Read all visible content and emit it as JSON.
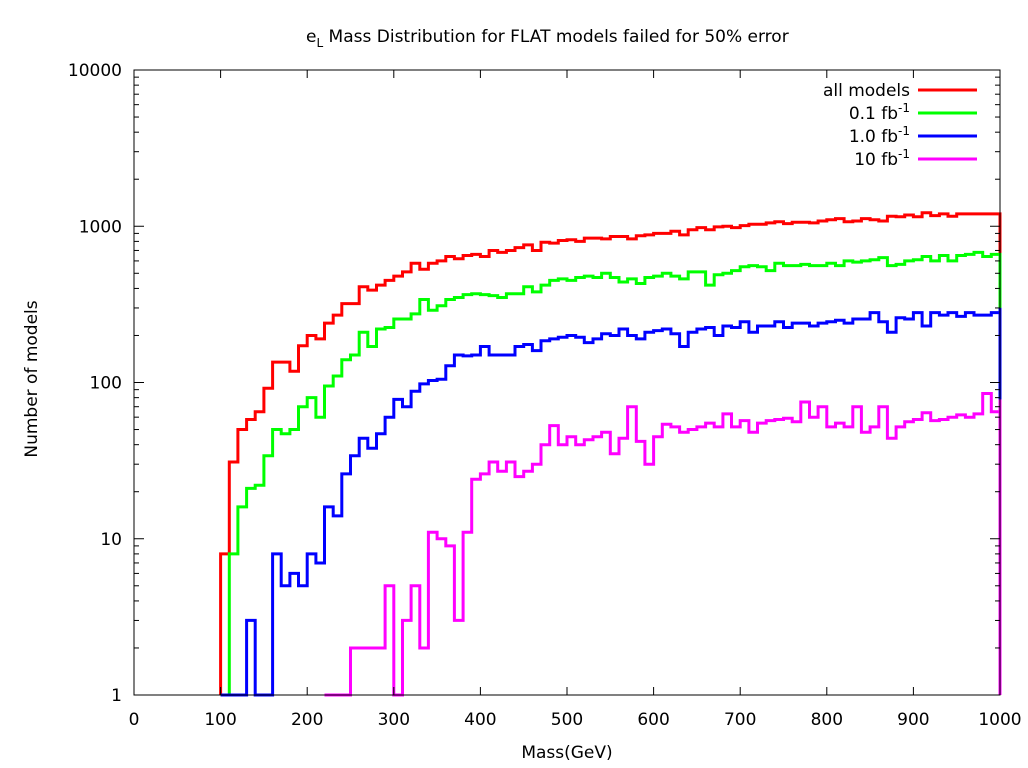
{
  "chart_data": {
    "type": "line",
    "title": {
      "main": "e",
      "sub": "L",
      "rest": " Mass Distribution for FLAT models failed for 50% error"
    },
    "xlabel": "Mass(GeV)",
    "ylabel": "Number of models",
    "xlim": [
      0,
      1000
    ],
    "ylim": [
      1,
      10000
    ],
    "yscale": "log",
    "grid": false,
    "legend_position": "top-right",
    "x_ticks": [
      "0",
      "100",
      "200",
      "300",
      "400",
      "500",
      "600",
      "700",
      "800",
      "900",
      "1000"
    ],
    "y_ticks": [
      "1",
      "10",
      "100",
      "1000",
      "10000"
    ],
    "bin_width": 10,
    "series": [
      {
        "name": "all models",
        "color": "#ff0000",
        "start_bin": 100,
        "values": [
          8,
          31,
          50,
          58,
          65,
          92,
          135,
          135,
          118,
          172,
          200,
          190,
          240,
          270,
          320,
          320,
          410,
          390,
          420,
          450,
          480,
          510,
          580,
          530,
          580,
          600,
          640,
          620,
          650,
          660,
          640,
          700,
          680,
          700,
          730,
          760,
          700,
          790,
          780,
          810,
          820,
          800,
          840,
          840,
          830,
          860,
          860,
          830,
          870,
          880,
          900,
          900,
          930,
          880,
          950,
          980,
          950,
          990,
          1000,
          980,
          1010,
          1030,
          1030,
          1050,
          1070,
          1040,
          1060,
          1060,
          1050,
          1080,
          1100,
          1120,
          1070,
          1080,
          1120,
          1100,
          1080,
          1160,
          1150,
          1180,
          1150,
          1220,
          1170,
          1200,
          1160,
          1200,
          1200,
          1200,
          1200,
          1200
        ]
      },
      {
        "name": "0.1 fb^-1",
        "color": "#00ff00",
        "start_bin": 100,
        "values": [
          1,
          8,
          16,
          21,
          22,
          34,
          50,
          47,
          50,
          70,
          80,
          60,
          95,
          110,
          140,
          150,
          210,
          170,
          220,
          225,
          255,
          255,
          275,
          340,
          290,
          310,
          340,
          350,
          365,
          370,
          365,
          360,
          350,
          370,
          370,
          410,
          380,
          420,
          450,
          460,
          450,
          470,
          480,
          470,
          500,
          470,
          440,
          460,
          430,
          470,
          480,
          500,
          480,
          460,
          510,
          510,
          420,
          490,
          500,
          520,
          550,
          560,
          550,
          520,
          580,
          560,
          560,
          570,
          560,
          560,
          580,
          560,
          600,
          590,
          600,
          610,
          630,
          560,
          570,
          600,
          610,
          640,
          600,
          650,
          600,
          650,
          660,
          680,
          640,
          660,
          650
        ]
      },
      {
        "name": "1.0 fb^-1",
        "color": "#0000ff",
        "start_bin": 100,
        "values": [
          1,
          1,
          1,
          3,
          1,
          1,
          8,
          5,
          6,
          5,
          8,
          7,
          16,
          14,
          26,
          34,
          44,
          38,
          47,
          60,
          78,
          70,
          88,
          98,
          103,
          105,
          128,
          150,
          148,
          150,
          170,
          150,
          150,
          150,
          170,
          175,
          160,
          185,
          190,
          195,
          200,
          195,
          180,
          190,
          205,
          200,
          220,
          200,
          190,
          210,
          215,
          220,
          205,
          170,
          210,
          220,
          225,
          200,
          230,
          225,
          245,
          210,
          230,
          230,
          245,
          225,
          240,
          240,
          230,
          240,
          245,
          250,
          240,
          255,
          255,
          280,
          245,
          210,
          260,
          255,
          280,
          230,
          280,
          270,
          280,
          265,
          280,
          270,
          270,
          280,
          300
        ]
      },
      {
        "name": "10 fb^-1",
        "color": "#ff00ff",
        "start_bin": 220,
        "values": [
          1,
          1,
          1,
          2,
          2,
          2,
          2,
          5,
          1,
          3,
          5,
          2,
          11,
          10,
          9,
          3,
          11,
          24,
          26,
          31,
          27,
          31,
          25,
          27,
          30,
          40,
          53,
          40,
          45,
          40,
          43,
          45,
          48,
          35,
          44,
          70,
          42,
          30,
          45,
          54,
          52,
          48,
          50,
          52,
          55,
          52,
          63,
          52,
          57,
          48,
          55,
          57,
          58,
          59,
          56,
          75,
          60,
          70,
          52,
          55,
          52,
          70,
          48,
          52,
          70,
          44,
          52,
          56,
          58,
          64,
          57,
          58,
          60,
          62,
          60,
          63,
          85,
          65,
          68,
          65,
          75,
          65,
          62,
          60,
          78
        ]
      }
    ]
  }
}
